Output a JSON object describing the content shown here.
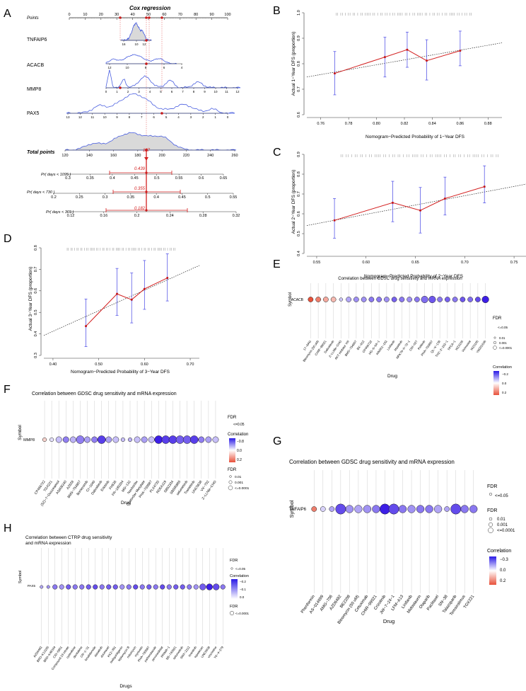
{
  "panel_labels": {
    "a": "A",
    "b": "B",
    "c": "C",
    "d": "D",
    "e": "E",
    "f": "F",
    "g": "G",
    "h": "H"
  },
  "nomogram": {
    "title": "Cox regression",
    "points_label": "Points",
    "points_ticks": [
      "0",
      "10",
      "20",
      "30",
      "40",
      "50",
      "60",
      "70",
      "80",
      "90",
      "100"
    ],
    "rows": [
      {
        "name": "TNFAIP6",
        "ticks": [
          "16",
          "10",
          "12"
        ]
      },
      {
        "name": "ACACB",
        "ticks": [
          "12",
          "10",
          "8",
          "6",
          "4"
        ]
      },
      {
        "name": "MMP8",
        "ticks": [
          "0",
          "1",
          "2",
          "3",
          "4",
          "5",
          "6",
          "7",
          "8",
          "9",
          "10",
          "11",
          "12"
        ]
      },
      {
        "name": "PAX5",
        "ticks": [
          "13",
          "12",
          "11",
          "10",
          "9",
          "8",
          "7",
          "6",
          "5",
          "4",
          "3",
          "2",
          "1",
          "0"
        ]
      }
    ],
    "total_label": "Total points",
    "total_ticks": [
      "120",
      "140",
      "160",
      "180",
      "200",
      "220",
      "240",
      "260"
    ],
    "total_value": "187",
    "prob_rows": [
      {
        "label": "Pr( days < 1095 )",
        "value": "0.439",
        "ticks": [
          "0.3",
          "0.35",
          "0.4",
          "0.45",
          "0.5",
          "0.55",
          "0.6",
          "0.65"
        ]
      },
      {
        "label": "Pr( days < 730 )",
        "value": "0.355",
        "ticks": [
          "0.2",
          "0.25",
          "0.3",
          "0.35",
          "0.4",
          "0.45",
          "0.5",
          "0.55"
        ]
      },
      {
        "label": "Pr( days < 365 )",
        "value": "0.182",
        "ticks": [
          "0.12",
          "0.16",
          "0.2",
          "0.24",
          "0.28",
          "0.32"
        ]
      }
    ]
  },
  "chart_data": [
    {
      "id": "B",
      "type": "scatter",
      "xlabel": "Nomogram−Predicted Probability of 1−Year DFS",
      "ylabel": "Actual 1−Year DFS (proportion)",
      "xlim": [
        0.75,
        0.89
      ],
      "ylim": [
        0.6,
        1.0
      ],
      "xticks": [
        "0.76",
        "0.78",
        "0.80",
        "0.82",
        "0.84",
        "0.86",
        "0.88"
      ],
      "yticks": [
        "0.6",
        "0.7",
        "0.8",
        "0.9",
        "1.0"
      ],
      "x": [
        0.77,
        0.806,
        0.822,
        0.836,
        0.86
      ],
      "y": [
        0.762,
        0.826,
        0.855,
        0.812,
        0.851
      ],
      "ylo": [
        0.678,
        0.748,
        0.786,
        0.736,
        0.792
      ],
      "yhi": [
        0.848,
        0.904,
        0.924,
        0.894,
        0.928
      ],
      "ref_line": [
        [
          0.75,
          0.748
        ],
        [
          0.89,
          0.882
        ]
      ]
    },
    {
      "id": "C",
      "type": "scatter",
      "xlabel": "Nomogram−Predicted Probability of 2−Year DFS",
      "ylabel": "Actual 2−Year DFS (proportion)",
      "xlim": [
        0.54,
        0.77
      ],
      "ylim": [
        0.4,
        0.9
      ],
      "xticks": [
        "0.55",
        "0.60",
        "0.65",
        "0.70",
        "0.75"
      ],
      "yticks": [
        "0.4",
        "0.5",
        "0.6",
        "0.7",
        "0.8",
        "0.9"
      ],
      "x": [
        0.568,
        0.627,
        0.655,
        0.68,
        0.72
      ],
      "y": [
        0.567,
        0.656,
        0.617,
        0.677,
        0.737
      ],
      "ylo": [
        0.477,
        0.56,
        0.503,
        0.594,
        0.655
      ],
      "yhi": [
        0.677,
        0.764,
        0.733,
        0.785,
        0.842
      ],
      "ref_line": [
        [
          0.54,
          0.541
        ],
        [
          0.77,
          0.757
        ]
      ]
    },
    {
      "id": "D",
      "type": "scatter",
      "xlabel": "Nomogram−Predicted Probability of 3−Year DFS",
      "ylabel": "Actual 3−Year DFS (proportion)",
      "xlim": [
        0.38,
        0.72
      ],
      "ylim": [
        0.3,
        0.8
      ],
      "xticks": [
        "0.40",
        "0.50",
        "0.60",
        "0.70"
      ],
      "yticks": [
        "0.3",
        "0.4",
        "0.5",
        "0.6",
        "0.7",
        "0.8"
      ],
      "x": [
        0.472,
        0.54,
        0.572,
        0.6,
        0.65
      ],
      "y": [
        0.436,
        0.586,
        0.559,
        0.609,
        0.66
      ],
      "ylo": [
        0.341,
        0.486,
        0.451,
        0.514,
        0.553
      ],
      "yhi": [
        0.562,
        0.704,
        0.683,
        0.741,
        0.772
      ],
      "ref_line": [
        [
          0.38,
          0.393
        ],
        [
          0.72,
          0.718
        ]
      ]
    },
    {
      "id": "E",
      "type": "dotplot",
      "title": "Correlation between GDSC drug sensitivity and mRNA expression",
      "ylabel": "Symbol",
      "xlabel": "Drug",
      "symbol": "ACACB",
      "drugs": [
        "17−AAG",
        "Bleomycin (50 uM)",
        "CHIR−99021",
        "Dabrafenib",
        "Z−LLNle−CHO",
        "AKT inhibitor VIII",
        "BMS−754807",
        "BX−912",
        "CP466722",
        "HG−6−64−1",
        "KIN001−102",
        "Linifanib",
        "Masitinib",
        "NPK76−II−72−1",
        "OSI−027",
        "Pelitinib",
        "PHA−793887",
        "QL−X−138",
        "THZ−2−102−1",
        "TPCA−1",
        "WZ3105",
        "Vorinostat",
        "WZ3105",
        "YM201636"
      ],
      "corr": [
        0.2,
        0.15,
        0.1,
        0.08,
        -0.05,
        -0.08,
        -0.1,
        -0.1,
        -0.12,
        -0.12,
        -0.1,
        -0.14,
        -0.12,
        -0.1,
        -0.12,
        -0.13,
        -0.15,
        -0.12,
        -0.14,
        -0.12,
        -0.15,
        -0.13,
        -0.16,
        -0.2
      ],
      "fdr_size": [
        2,
        2,
        2,
        2,
        1,
        2,
        2,
        2,
        2,
        2,
        2,
        2,
        2,
        2,
        2,
        3,
        3,
        2,
        2,
        2,
        2,
        2,
        2,
        3
      ],
      "legend": {
        "fdr_title": "FDR",
        "fdr_sig": "<=0.05",
        "fdr_levels": [
          "0.01",
          "0.001",
          "<=0.0001"
        ],
        "corr_title": "Correlation",
        "corr_ticks": [
          "−0.2",
          "0.0",
          "0.2"
        ]
      }
    },
    {
      "id": "F",
      "type": "dotplot",
      "title": "Correlation between GDSC drug sensitivity and mRNA expression",
      "ylabel": "Symbol",
      "xlabel": "Drug",
      "symbol": "MMP8",
      "drugs": [
        "CP466722",
        "TGX221",
        "(5Z)−7−Oxozeaenol",
        "AS605240",
        "AZ628",
        "BMS−754807",
        "Bortezomib",
        "CI−1040",
        "Dabrafenib",
        "Erlotinib",
        "FH535",
        "FR−180204",
        "MG−132",
        "Navitoclax",
        "Obatoclax Mesylate",
        "PHA−793887",
        "PLX4720",
        "RDEA119",
        "SB52334",
        "SB590885",
        "selumetinib",
        "Trametinib",
        "UNC0638",
        "VX−702",
        "Z−LLNle−CHO"
      ],
      "corr": [
        0.05,
        -0.05,
        -0.1,
        -0.2,
        -0.12,
        -0.2,
        -0.15,
        -0.2,
        -0.3,
        -0.15,
        -0.1,
        -0.1,
        -0.12,
        -0.1,
        -0.15,
        -0.1,
        -0.35,
        -0.3,
        -0.3,
        -0.25,
        -0.25,
        -0.3,
        -0.2,
        -0.15,
        -0.1
      ],
      "fdr_size": [
        1,
        1,
        2,
        2,
        2,
        3,
        2,
        2,
        3,
        2,
        2,
        1,
        1,
        2,
        2,
        2,
        3,
        3,
        3,
        3,
        3,
        3,
        2,
        2,
        2
      ],
      "legend": {
        "fdr_title": "FDR",
        "fdr_sig": "<=0.05",
        "fdr_levels": [
          "0.01",
          "0.001",
          "<=0.0001"
        ],
        "corr_title": "Correlation",
        "corr_ticks": [
          "−0.8",
          "0.0",
          "0.2"
        ]
      }
    },
    {
      "id": "G",
      "type": "dotplot",
      "title": "Correlation between GDSC drug sensitivity and mRNA expression",
      "ylabel": "Symbol",
      "xlabel": "Drug",
      "symbol": "TNFAIP6",
      "drugs": [
        "Phenformin",
        "AS−014699",
        "AMG−706",
        "AZD6482",
        "BE2208",
        "Bleomycin (50 uM)",
        "Cetuximab",
        "CHIR−99021",
        "Crizotinib",
        "JW−7−24−1",
        "LFM−A13",
        "Linifanib",
        "Midostaurin",
        "Olaparib",
        "Paclitaxel",
        "SN−38",
        "Talazoparib",
        "Temsirolimus",
        "TGX221"
      ],
      "corr": [
        0.15,
        -0.05,
        -0.1,
        -0.2,
        -0.12,
        -0.1,
        -0.12,
        -0.15,
        -0.25,
        -0.2,
        -0.15,
        -0.12,
        -0.15,
        -0.15,
        -0.1,
        -0.1,
        -0.2,
        -0.15,
        -0.15
      ],
      "fdr_size": [
        1,
        1,
        1,
        3,
        2,
        2,
        2,
        2,
        3,
        3,
        2,
        2,
        2,
        2,
        2,
        1,
        3,
        2,
        2
      ],
      "legend": {
        "fdr_title": "FDR",
        "fdr_sig": "<=0.05",
        "fdr_levels": [
          "0.01",
          "0.001",
          "<=0.0001"
        ],
        "corr_title": "Correlation",
        "corr_ticks": [
          "−0.3",
          "0.0",
          "0.2"
        ]
      }
    },
    {
      "id": "H",
      "type": "dotplot",
      "title": "Correlation between CTRP drug sensitivity\nand mRNA expression",
      "ylabel": "Symbol",
      "xlabel": "Drugs",
      "symbol": "PAX5",
      "drugs": [
        "AZD6482",
        "BRD−K13185",
        "BRD−K48334",
        "CID−5951",
        "Compound 23 citrate",
        "cytarabine",
        "decitabine",
        "CR−1−31",
        "lenalidomide",
        "dasatinib",
        "docetaxel",
        "KX2−391",
        "isoliquiritigenin",
        "leptomycin B",
        "mitomycin",
        "myricetin",
        "PHA−793887",
        "parbendazole",
        "pevonedistat",
        "PRIMA−1",
        "SB−743921",
        "selumetinib",
        "SNX−2112",
        "tivantinib",
        "topotecan",
        "UNC0638",
        "vincristine",
        "YK−4−279"
      ],
      "corr": [
        -0.1,
        -0.12,
        -0.15,
        -0.12,
        -0.18,
        -0.15,
        -0.15,
        -0.18,
        -0.2,
        -0.15,
        -0.18,
        -0.18,
        -0.12,
        -0.15,
        -0.2,
        -0.15,
        -0.18,
        -0.15,
        -0.2,
        -0.15,
        -0.18,
        -0.18,
        -0.15,
        -0.12,
        -0.18,
        -0.25,
        -0.2,
        -0.15
      ],
      "fdr_size": [
        1,
        1,
        2,
        2,
        2,
        2,
        2,
        2,
        2,
        2,
        2,
        2,
        2,
        2,
        2,
        2,
        2,
        2,
        2,
        2,
        2,
        2,
        2,
        2,
        3,
        3,
        3,
        2
      ],
      "legend": {
        "fdr_title": "FDR",
        "fdr_sig": "<=0.05",
        "fdr_levels": [
          "<=0.0001"
        ],
        "corr_title": "Correlation",
        "corr_ticks": [
          "−0.2",
          "−0.1",
          "0.0"
        ]
      }
    }
  ],
  "colors": {
    "line": "#d32020",
    "point": "#c61a1a",
    "errbar": "#5a5ae8",
    "ref": "#222222",
    "neg": "#3c1ee6",
    "pos": "#e8513a",
    "density": "#4a5fe0"
  }
}
